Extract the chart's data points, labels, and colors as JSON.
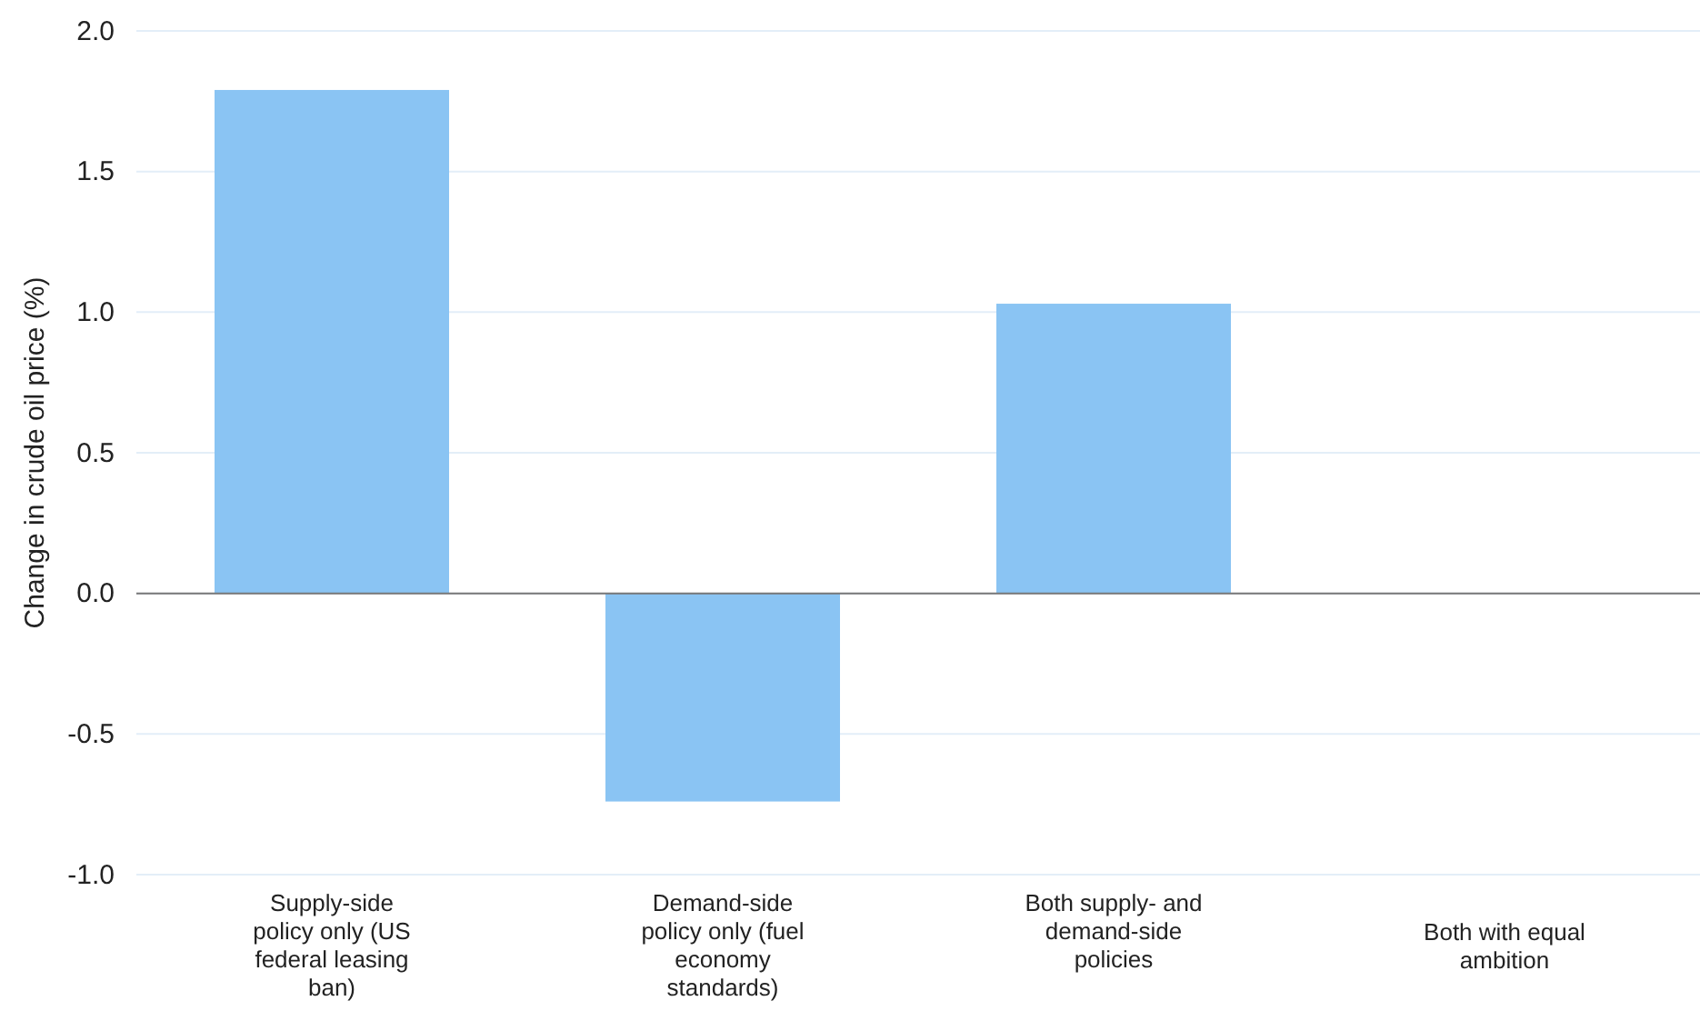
{
  "chart_data": {
    "type": "bar",
    "ylabel": "Change in crude oil price (%)",
    "categories": [
      "Supply-side policy only (US federal leasing ban)",
      "Demand-side policy only (fuel economy standards)",
      "Both supply- and demand-side policies",
      "Both with equal ambition"
    ],
    "values": [
      1.79,
      -0.74,
      1.03,
      0.0
    ],
    "color": "#8ac4f3",
    "ylim": [
      -1.0,
      2.0
    ],
    "yticks": [
      {
        "value": -1,
        "label": "-1.0"
      },
      {
        "value": -0.5,
        "label": "-0.5"
      },
      {
        "value": 0,
        "label": "0.0"
      },
      {
        "value": 0.5,
        "label": "0.5"
      },
      {
        "value": 1,
        "label": "1.0"
      },
      {
        "value": 1.5,
        "label": "1.5"
      },
      {
        "value": 2,
        "label": "2.0"
      }
    ],
    "grid": "y"
  }
}
